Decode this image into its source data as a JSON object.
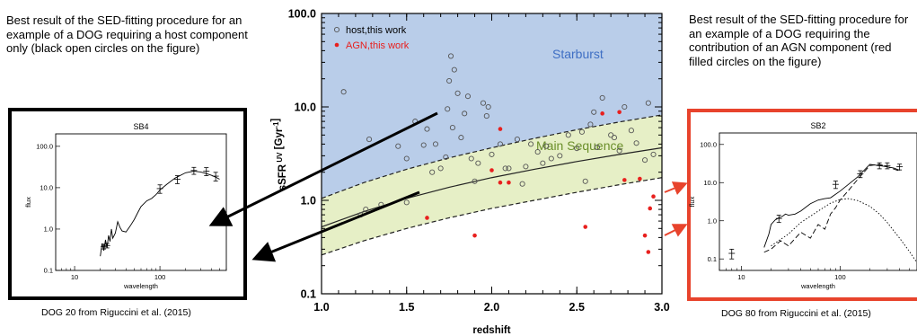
{
  "captions": {
    "left": "Best result of the SED-fitting procedure for an example of a DOG requiring a host component only (black open circles on the figure)",
    "right": "Best result of the SED-fitting procedure for an example of a DOG requiring the contribution of an AGN component (red filled circles on the figure)"
  },
  "footnotes": {
    "left": "DOG 20 from Riguccini et al. (2015)",
    "right": "DOG 80 from Riguccini et al. (2015)"
  },
  "colors": {
    "starburst_fill": "#b9cde9",
    "main_sequence_fill": "#e6efc6",
    "host": "#555555",
    "agn": "#e8201e",
    "starburst_label": "#3f6fc4",
    "ms_label": "#6b8f2a",
    "right_frame": "#e8432c"
  },
  "chart_data": [
    {
      "type": "scatter",
      "xlabel": "redshift",
      "ylabel": "sSFR",
      "ylabel_super": "UV",
      "ylabel_unit": "[Gyr",
      "ylabel_unit_exp": "-1",
      "ylabel_close": "]",
      "xlim": [
        1.0,
        3.0
      ],
      "ylim": [
        0.1,
        100.0
      ],
      "yscale": "log",
      "xticks": [
        1.0,
        1.5,
        2.0,
        2.5,
        3.0
      ],
      "xtick_labels": [
        "1.0",
        "1.5",
        "2.0",
        "2.5",
        "3.0"
      ],
      "yticks": [
        0.1,
        1.0,
        10.0,
        100.0
      ],
      "ytick_labels": [
        "0.1",
        "1.0",
        "10.0",
        "100.0"
      ],
      "legend": {
        "placement": "top-left",
        "host_label": "host,this work",
        "agn_label": "AGN,this work"
      },
      "region_labels": {
        "starburst": "Starburst",
        "main_sequence": "Main Sequence"
      },
      "main_sequence": {
        "x": [
          1.0,
          1.25,
          1.5,
          1.75,
          2.0,
          2.25,
          2.5,
          2.75,
          3.0
        ],
        "center": [
          0.52,
          0.76,
          1.05,
          1.38,
          1.75,
          2.15,
          2.6,
          3.1,
          3.65
        ],
        "upper": [
          1.05,
          1.55,
          2.15,
          2.85,
          3.65,
          4.6,
          5.7,
          6.9,
          8.2
        ],
        "lower": [
          0.26,
          0.37,
          0.5,
          0.65,
          0.82,
          1.0,
          1.22,
          1.47,
          1.75
        ]
      },
      "series": [
        {
          "name": "host,this work",
          "x": [
            1.13,
            1.23,
            1.26,
            1.28,
            1.35,
            1.45,
            1.5,
            1.5,
            1.55,
            1.6,
            1.62,
            1.65,
            1.67,
            1.7,
            1.73,
            1.74,
            1.75,
            1.76,
            1.77,
            1.78,
            1.8,
            1.82,
            1.84,
            1.86,
            1.88,
            1.9,
            1.92,
            1.95,
            1.97,
            1.98,
            2.0,
            2.05,
            2.08,
            2.1,
            2.15,
            2.18,
            2.2,
            2.23,
            2.27,
            2.3,
            2.32,
            2.35,
            2.4,
            2.45,
            2.5,
            2.53,
            2.55,
            2.58,
            2.6,
            2.62,
            2.65,
            2.7,
            2.72,
            2.75,
            2.78,
            2.82,
            2.85,
            2.9,
            2.92,
            2.95
          ],
          "y": [
            14.5,
            0.7,
            0.8,
            4.5,
            0.9,
            3.8,
            2.8,
            0.95,
            7.0,
            3.9,
            5.8,
            2.0,
            4.0,
            2.2,
            2.9,
            9.5,
            19.0,
            35.0,
            6.0,
            25.0,
            14.0,
            4.7,
            8.5,
            13.0,
            2.8,
            1.6,
            2.5,
            11.0,
            8.0,
            10.0,
            3.1,
            4.0,
            2.2,
            2.2,
            4.5,
            1.5,
            2.3,
            4.0,
            3.3,
            2.5,
            3.8,
            2.8,
            3.0,
            5.0,
            3.6,
            5.4,
            1.6,
            6.5,
            8.8,
            3.7,
            12.5,
            5.0,
            4.7,
            3.4,
            10.0,
            5.6,
            4.1,
            2.7,
            11.0,
            3.1
          ]
        },
        {
          "name": "AGN,this work",
          "x": [
            1.62,
            1.9,
            2.0,
            2.05,
            2.05,
            2.1,
            2.55,
            2.65,
            2.75,
            2.78,
            2.87,
            2.9,
            2.92,
            2.93,
            2.95
          ],
          "y": [
            0.65,
            0.42,
            2.1,
            1.55,
            5.8,
            1.55,
            0.52,
            8.5,
            8.8,
            1.65,
            1.7,
            0.42,
            0.28,
            0.82,
            1.1
          ]
        }
      ]
    },
    {
      "type": "line",
      "title": "SB4",
      "xlabel": "wavelength",
      "ylabel": "flux",
      "xscale": "log",
      "yscale": "log",
      "xlim": [
        6,
        600
      ],
      "ylim": [
        0.1,
        200
      ],
      "xticks": [
        10,
        100
      ],
      "xtick_labels": [
        "10",
        "100"
      ],
      "yticks": [
        0.1,
        1.0,
        10.0,
        100.0
      ],
      "ytick_labels": [
        "0.1",
        "1.0",
        "10.0",
        "100.0"
      ],
      "model": {
        "x": [
          20,
          21,
          22,
          23,
          24,
          25,
          26,
          27,
          28,
          30,
          32,
          34,
          36,
          40,
          45,
          50,
          55,
          60,
          70,
          80,
          90,
          100,
          120,
          150,
          200,
          250,
          300,
          350,
          400,
          450,
          500
        ],
        "y": [
          0.22,
          0.45,
          0.3,
          0.55,
          0.35,
          0.7,
          0.5,
          1.0,
          0.6,
          0.8,
          1.5,
          1.1,
          0.9,
          0.85,
          1.2,
          1.7,
          2.5,
          3.5,
          4.8,
          5.5,
          6.8,
          8.8,
          12.0,
          17.0,
          23.0,
          25.0,
          24.0,
          22.0,
          20.0,
          18.0,
          16.0
        ]
      },
      "points": {
        "x": [
          22,
          24,
          100,
          160,
          250,
          350,
          450
        ],
        "y": [
          0.38,
          0.4,
          9.5,
          16.0,
          26.0,
          25.0,
          19.0
        ],
        "err": [
          0.05,
          0.05,
          2.2,
          3.5,
          5.0,
          5.5,
          4.5
        ]
      }
    },
    {
      "type": "line",
      "title": "SB2",
      "xlabel": "wavelength",
      "ylabel": "flux",
      "xscale": "log",
      "yscale": "log",
      "xlim": [
        6,
        600
      ],
      "ylim": [
        0.05,
        200
      ],
      "xticks": [
        10,
        100
      ],
      "xtick_labels": [
        "10",
        "100"
      ],
      "yticks": [
        0.1,
        1.0,
        10.0,
        100.0
      ],
      "ytick_labels": [
        "0.1",
        "1.0",
        "10.0",
        "100.0"
      ],
      "total": {
        "x": [
          17,
          19,
          20,
          22,
          24,
          26,
          28,
          30,
          35,
          40,
          50,
          60,
          70,
          80,
          100,
          150,
          200,
          250,
          300,
          350,
          400
        ],
        "y": [
          0.2,
          0.45,
          0.8,
          1.05,
          1.2,
          1.3,
          1.5,
          1.4,
          1.5,
          1.8,
          2.8,
          3.5,
          3.8,
          4.0,
          6.0,
          14.0,
          30.0,
          28.0,
          26.0,
          24.0,
          21.0
        ]
      },
      "host": {
        "x": [
          17,
          20,
          25,
          30,
          40,
          50,
          60,
          70,
          80,
          90,
          100,
          120,
          150,
          200,
          250,
          300,
          400
        ],
        "y": [
          0.15,
          0.18,
          0.3,
          0.22,
          0.5,
          0.35,
          0.8,
          0.6,
          1.5,
          2.2,
          3.5,
          6.0,
          12.0,
          28.0,
          30.0,
          26.0,
          20.0
        ]
      },
      "agn": {
        "x": [
          20,
          30,
          40,
          60,
          80,
          100,
          120,
          150,
          200,
          250,
          300,
          400,
          500,
          600
        ],
        "y": [
          0.22,
          0.45,
          0.9,
          1.8,
          2.9,
          3.6,
          3.8,
          3.4,
          2.4,
          1.5,
          0.9,
          0.35,
          0.16,
          0.08
        ]
      },
      "points": {
        "x": [
          8,
          24,
          90,
          160,
          250,
          300,
          400
        ],
        "y": [
          0.14,
          1.15,
          9.0,
          17.0,
          28.0,
          28.0,
          26.0
        ],
        "err": [
          0.04,
          0.25,
          2.0,
          3.5,
          5.0,
          5.0,
          4.5
        ]
      }
    }
  ]
}
